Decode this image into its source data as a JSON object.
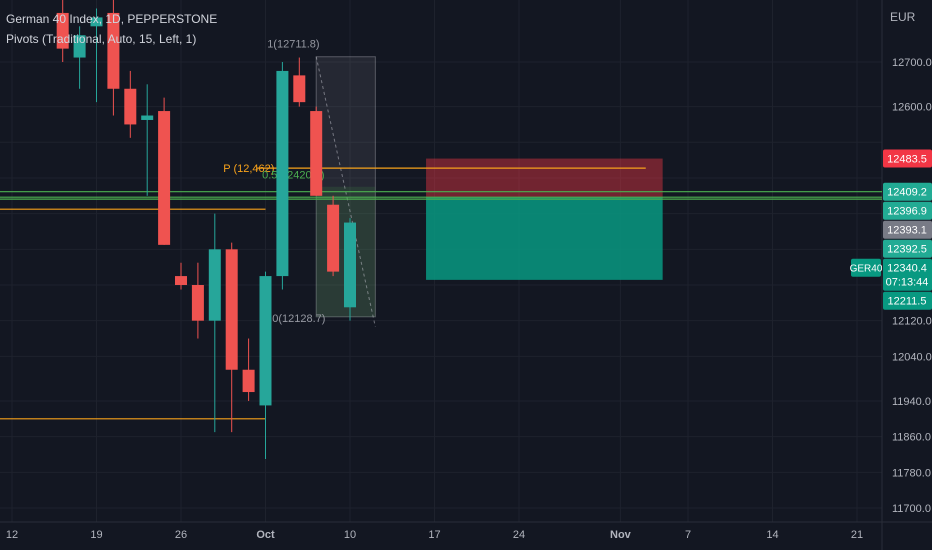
{
  "header": {
    "title": "German 40 Index, 1D, PEPPERSTONE",
    "indicator": "Pivots (Traditional, Auto, 15, Left, 1)",
    "currency": "EUR"
  },
  "colors": {
    "background": "#131722",
    "up": "#26a69a",
    "down": "#ef5350",
    "pivot": "#f7a21b",
    "fib": "#4caf50",
    "grid": "#1e222d",
    "axis_text": "#b2b5be",
    "badge_red": "#f23645",
    "badge_green": "#22ab94",
    "badge_grey": "#787b86",
    "badge_teal": "#089981"
  },
  "chart_data": {
    "type": "candlestick",
    "symbol": "GER40",
    "ylim": [
      11650,
      12850
    ],
    "y_ticks": [
      12700.0,
      12600.0,
      12520.0,
      12440.0,
      12360.0,
      12280.0,
      12200.0,
      12120.0,
      12040.0,
      11940.0,
      11860.0,
      11780.0,
      11700.0
    ],
    "y_tick_labels": [
      "12700.0",
      "12600.0",
      "",
      "",
      "",
      "",
      "",
      "12120.0",
      "12040.0",
      "11940.0",
      "11860.0",
      "11780.0",
      "11700.0"
    ],
    "x_tick_labels": [
      {
        "slot": 0,
        "label": "12"
      },
      {
        "slot": 5,
        "label": "19"
      },
      {
        "slot": 10,
        "label": "26"
      },
      {
        "slot": 15,
        "label": "Oct"
      },
      {
        "slot": 20,
        "label": "10"
      },
      {
        "slot": 25,
        "label": "17"
      },
      {
        "slot": 30,
        "label": "24"
      },
      {
        "slot": 36,
        "label": "Nov"
      },
      {
        "slot": 40,
        "label": "7"
      },
      {
        "slot": 45,
        "label": "14"
      },
      {
        "slot": 50,
        "label": "21"
      }
    ],
    "candles": [
      {
        "slot": 3,
        "open": 12810,
        "high": 12840,
        "low": 12700,
        "close": 12730
      },
      {
        "slot": 4,
        "open": 12710,
        "high": 12780,
        "low": 12640,
        "close": 12760
      },
      {
        "slot": 5,
        "open": 12780,
        "high": 12820,
        "low": 12610,
        "close": 12800
      },
      {
        "slot": 6,
        "open": 12810,
        "high": 12840,
        "low": 12580,
        "close": 12640
      },
      {
        "slot": 7,
        "open": 12640,
        "high": 12680,
        "low": 12530,
        "close": 12560
      },
      {
        "slot": 8,
        "open": 12570,
        "high": 12650,
        "low": 12400,
        "close": 12580
      },
      {
        "slot": 9,
        "open": 12590,
        "high": 12620,
        "low": 12290,
        "close": 12290
      },
      {
        "slot": 10,
        "open": 12220,
        "high": 12250,
        "low": 12190,
        "close": 12200
      },
      {
        "slot": 11,
        "open": 12200,
        "high": 12250,
        "low": 12080,
        "close": 12120
      },
      {
        "slot": 12,
        "open": 12120,
        "high": 12360,
        "low": 11870,
        "close": 12280
      },
      {
        "slot": 13,
        "open": 12280,
        "high": 12295,
        "low": 11870,
        "close": 12010
      },
      {
        "slot": 14,
        "open": 12010,
        "high": 12080,
        "low": 11940,
        "close": 11960
      },
      {
        "slot": 15,
        "open": 11930,
        "high": 12230,
        "low": 11810,
        "close": 12220
      },
      {
        "slot": 16,
        "open": 12220,
        "high": 12700,
        "low": 12190,
        "close": 12680
      },
      {
        "slot": 17,
        "open": 12670,
        "high": 12710,
        "low": 12600,
        "close": 12610
      },
      {
        "slot": 18,
        "open": 12590,
        "high": 12600,
        "low": 12400,
        "close": 12400
      },
      {
        "slot": 19,
        "open": 12380,
        "high": 12400,
        "low": 12220,
        "close": 12230
      },
      {
        "slot": 20,
        "open": 12150,
        "high": 12350,
        "low": 12120,
        "close": 12340
      }
    ],
    "drawings": {
      "pivot_label": "P (12,462)",
      "fib_label": "0.5(12420.3)",
      "pattern_top_label": "1(12711.8)",
      "pattern_bottom_label": "0(12128.7)",
      "pattern_high": 12711.8,
      "pattern_low": 12128.7,
      "pattern_slots": [
        18,
        21.5
      ],
      "pivot_lines": [
        {
          "y": 12462,
          "from_slot": 14.5,
          "to_slot": 37.5
        },
        {
          "y": 12370,
          "from_slot": -1,
          "to_slot": 15
        },
        {
          "y": 11900,
          "from_slot": -1,
          "to_slot": 15
        }
      ],
      "green_lines": [
        12409.2,
        12396.9,
        12392.5
      ],
      "risk_box": {
        "top": 12483.5,
        "entry": 12396.9,
        "bottom": 12211.5,
        "from_slot": 24.5,
        "to_slot": 38.5
      }
    },
    "price_badges": [
      {
        "value": "12483.5",
        "y": 12483.5,
        "kind": "red"
      },
      {
        "value": "12409.2",
        "y": 12409.2,
        "kind": "green"
      },
      {
        "value": "12396.9",
        "y": 12396.9,
        "kind": "green"
      },
      {
        "value": "12393.1",
        "y": 12393.1,
        "kind": "grey"
      },
      {
        "value": "12392.5",
        "y": 12392.5,
        "kind": "green"
      },
      {
        "value": "12340.4",
        "y": 12340.4,
        "kind": "teal",
        "extra": "07:13:44",
        "tag": "GER40"
      },
      {
        "value": "12211.5",
        "y": 12211.5,
        "kind": "teal"
      }
    ]
  }
}
